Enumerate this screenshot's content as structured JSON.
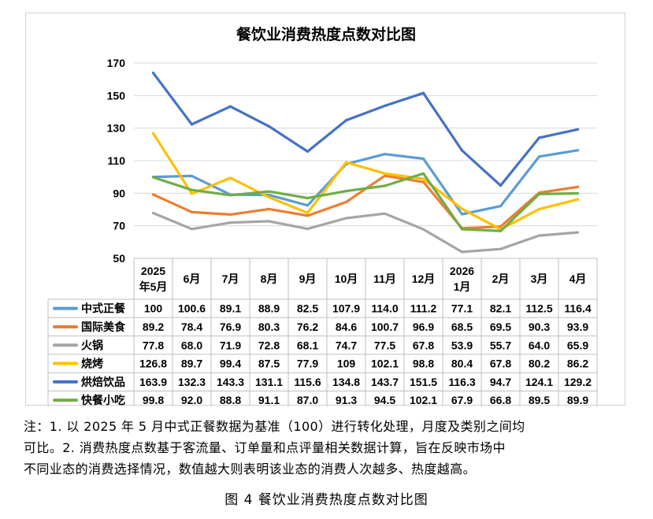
{
  "chart_data": {
    "type": "line",
    "title": "餐饮业消费热度点数对比图",
    "categories": [
      [
        "2025",
        "年5月"
      ],
      [
        "6月"
      ],
      [
        "7月"
      ],
      [
        "8月"
      ],
      [
        "9月"
      ],
      [
        "10月"
      ],
      [
        "11月"
      ],
      [
        "12月"
      ],
      [
        "2026",
        "1月"
      ],
      [
        "2月"
      ],
      [
        "3月"
      ],
      [
        "4月"
      ]
    ],
    "ylim": [
      50,
      170
    ],
    "yticks": [
      50,
      70,
      90,
      110,
      130,
      150,
      170
    ],
    "grid": true,
    "legend": "table-below",
    "series": [
      {
        "name": "中式正餐",
        "color": "#5b9bd5",
        "values": [
          100,
          100.6,
          89.1,
          88.9,
          82.5,
          107.9,
          114.0,
          111.2,
          77.1,
          82.1,
          112.5,
          116.4
        ],
        "labels": [
          "100",
          "100.6",
          "89.1",
          "88.9",
          "82.5",
          "107.9",
          "114.0",
          "111.2",
          "77.1",
          "82.1",
          "112.5",
          "116.4"
        ]
      },
      {
        "name": "国际美食",
        "color": "#ed7d31",
        "values": [
          89.2,
          78.4,
          76.9,
          80.3,
          76.2,
          84.6,
          100.7,
          96.9,
          68.5,
          69.5,
          90.3,
          93.9
        ],
        "labels": [
          "89.2",
          "78.4",
          "76.9",
          "80.3",
          "76.2",
          "84.6",
          "100.7",
          "96.9",
          "68.5",
          "69.5",
          "90.3",
          "93.9"
        ]
      },
      {
        "name": "火锅",
        "color": "#a5a5a5",
        "values": [
          77.8,
          68.0,
          71.9,
          72.8,
          68.1,
          74.7,
          77.5,
          67.8,
          53.9,
          55.7,
          64.0,
          65.9
        ],
        "labels": [
          "77.8",
          "68.0",
          "71.9",
          "72.8",
          "68.1",
          "74.7",
          "77.5",
          "67.8",
          "53.9",
          "55.7",
          "64.0",
          "65.9"
        ]
      },
      {
        "name": "烧烤",
        "color": "#ffc000",
        "values": [
          126.8,
          89.7,
          99.4,
          87.5,
          77.9,
          109,
          102.1,
          98.8,
          80.4,
          67.8,
          80.2,
          86.2
        ],
        "labels": [
          "126.8",
          "89.7",
          "99.4",
          "87.5",
          "77.9",
          "109",
          "102.1",
          "98.8",
          "80.4",
          "67.8",
          "80.2",
          "86.2"
        ]
      },
      {
        "name": "烘焙饮品",
        "color": "#4472c4",
        "values": [
          163.9,
          132.3,
          143.3,
          131.1,
          115.6,
          134.8,
          143.7,
          151.5,
          116.3,
          94.7,
          124.1,
          129.2
        ],
        "labels": [
          "163.9",
          "132.3",
          "143.3",
          "131.1",
          "115.6",
          "134.8",
          "143.7",
          "151.5",
          "116.3",
          "94.7",
          "124.1",
          "129.2"
        ]
      },
      {
        "name": "快餐小吃",
        "color": "#70ad47",
        "values": [
          99.8,
          92.0,
          88.8,
          91.1,
          87.0,
          91.3,
          94.5,
          102.1,
          67.9,
          66.8,
          89.5,
          89.9
        ],
        "labels": [
          "99.8",
          "92.0",
          "88.8",
          "91.1",
          "87.0",
          "91.3",
          "94.5",
          "102.1",
          "67.9",
          "66.8",
          "89.5",
          "89.9"
        ]
      }
    ]
  },
  "notes": {
    "line1": "注：1. 以 2025 年 5 月中式正餐数据为基准（100）进行转化处理，月度及类别之间均",
    "line2": "可比。2. 消费热度点数基于客流量、订单量和点评量相关数据计算，旨在反映市场中",
    "line3": "不同业态的消费选择情况，数值越大则表明该业态的消费人次越多、热度越高。"
  },
  "caption": "图 4  餐饮业消费热度点数对比图"
}
